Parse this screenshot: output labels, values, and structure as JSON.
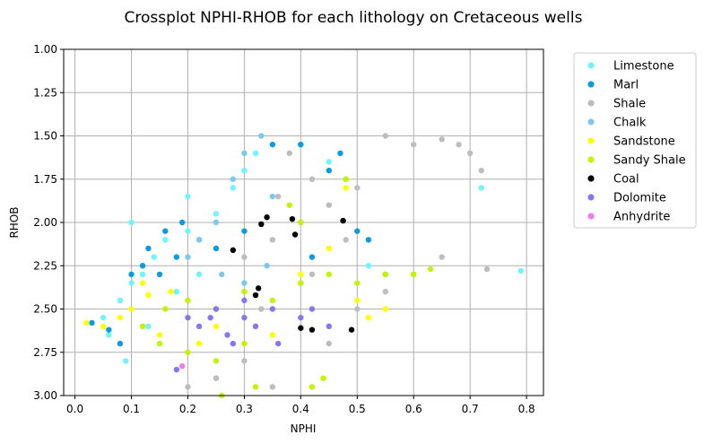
{
  "chart_data": {
    "type": "scatter",
    "title": "Crossplot NPHI-RHOB for each lithology on Cretaceous wells",
    "xlabel": "NPHI",
    "ylabel": "RHOB",
    "xlim": [
      -0.02,
      0.83
    ],
    "ylim": [
      3.0,
      1.0
    ],
    "y_inverted": true,
    "xticks": [
      "0.0",
      "0.1",
      "0.2",
      "0.3",
      "0.4",
      "0.5",
      "0.6",
      "0.7",
      "0.8"
    ],
    "yticks": [
      "1.00",
      "1.25",
      "1.50",
      "1.75",
      "2.00",
      "2.25",
      "2.50",
      "2.75",
      "3.00"
    ],
    "grid": true,
    "legend_position": "outside-right",
    "series": [
      {
        "name": "Limestone",
        "color": "#6ef5ff",
        "points": [
          [
            0.05,
            2.55
          ],
          [
            0.08,
            2.45
          ],
          [
            0.1,
            2.35
          ],
          [
            0.12,
            2.3
          ],
          [
            0.14,
            2.2
          ],
          [
            0.16,
            2.1
          ],
          [
            0.2,
            2.05
          ],
          [
            0.25,
            1.95
          ],
          [
            0.28,
            1.8
          ],
          [
            0.3,
            1.7
          ],
          [
            0.32,
            1.6
          ],
          [
            0.4,
            1.55
          ],
          [
            0.45,
            1.65
          ],
          [
            0.48,
            1.75
          ],
          [
            0.52,
            2.25
          ],
          [
            0.79,
            2.28
          ],
          [
            0.72,
            1.8
          ],
          [
            0.1,
            2.0
          ],
          [
            0.2,
            1.85
          ],
          [
            0.06,
            2.65
          ],
          [
            0.09,
            2.8
          ],
          [
            0.13,
            2.6
          ],
          [
            0.18,
            2.4
          ],
          [
            0.22,
            2.3
          ]
        ]
      },
      {
        "name": "Marl",
        "color": "#0b9be2",
        "points": [
          [
            0.03,
            2.58
          ],
          [
            0.06,
            2.62
          ],
          [
            0.1,
            2.3
          ],
          [
            0.13,
            2.15
          ],
          [
            0.16,
            2.05
          ],
          [
            0.19,
            2.0
          ],
          [
            0.22,
            2.1
          ],
          [
            0.25,
            2.15
          ],
          [
            0.35,
            1.55
          ],
          [
            0.4,
            1.55
          ],
          [
            0.45,
            1.7
          ],
          [
            0.5,
            2.05
          ],
          [
            0.52,
            2.1
          ],
          [
            0.12,
            2.25
          ],
          [
            0.15,
            2.3
          ],
          [
            0.18,
            2.2
          ],
          [
            0.08,
            2.7
          ],
          [
            0.3,
            2.05
          ],
          [
            0.42,
            2.2
          ],
          [
            0.47,
            1.6
          ],
          [
            0.55,
            2.3
          ]
        ]
      },
      {
        "name": "Shale",
        "color": "#bdbdbd",
        "points": [
          [
            0.3,
            2.2
          ],
          [
            0.35,
            2.1
          ],
          [
            0.4,
            2.0
          ],
          [
            0.45,
            1.9
          ],
          [
            0.5,
            1.8
          ],
          [
            0.55,
            1.5
          ],
          [
            0.6,
            1.55
          ],
          [
            0.65,
            1.52
          ],
          [
            0.68,
            1.55
          ],
          [
            0.7,
            1.6
          ],
          [
            0.72,
            1.7
          ],
          [
            0.73,
            2.27
          ],
          [
            0.65,
            2.2
          ],
          [
            0.6,
            2.3
          ],
          [
            0.55,
            2.4
          ],
          [
            0.38,
            1.6
          ],
          [
            0.42,
            1.75
          ],
          [
            0.33,
            2.5
          ],
          [
            0.3,
            2.8
          ],
          [
            0.25,
            2.9
          ],
          [
            0.2,
            2.95
          ],
          [
            0.35,
            2.95
          ],
          [
            0.45,
            2.7
          ],
          [
            0.5,
            2.5
          ],
          [
            0.42,
            2.3
          ],
          [
            0.48,
            2.1
          ],
          [
            0.36,
            1.85
          ]
        ]
      },
      {
        "name": "Chalk",
        "color": "#7ec8f0",
        "points": [
          [
            0.25,
            2.0
          ],
          [
            0.28,
            1.75
          ],
          [
            0.3,
            1.6
          ],
          [
            0.33,
            1.5
          ],
          [
            0.35,
            1.85
          ],
          [
            0.26,
            2.3
          ],
          [
            0.3,
            2.35
          ],
          [
            0.34,
            2.25
          ],
          [
            0.2,
            2.2
          ],
          [
            0.22,
            2.1
          ]
        ]
      },
      {
        "name": "Sandstone",
        "color": "#ffff00",
        "points": [
          [
            0.02,
            2.58
          ],
          [
            0.05,
            2.6
          ],
          [
            0.08,
            2.55
          ],
          [
            0.1,
            2.5
          ],
          [
            0.13,
            2.42
          ],
          [
            0.17,
            2.4
          ],
          [
            0.2,
            2.55
          ],
          [
            0.25,
            2.6
          ],
          [
            0.3,
            2.55
          ],
          [
            0.35,
            2.65
          ],
          [
            0.4,
            2.3
          ],
          [
            0.45,
            2.15
          ],
          [
            0.5,
            2.45
          ],
          [
            0.55,
            2.5
          ],
          [
            0.48,
            1.8
          ],
          [
            0.52,
            2.55
          ],
          [
            0.15,
            2.65
          ],
          [
            0.22,
            2.7
          ],
          [
            0.12,
            2.35
          ]
        ]
      },
      {
        "name": "Sandy Shale",
        "color": "#c0f500",
        "points": [
          [
            0.12,
            2.6
          ],
          [
            0.16,
            2.5
          ],
          [
            0.2,
            2.45
          ],
          [
            0.25,
            2.5
          ],
          [
            0.3,
            2.4
          ],
          [
            0.35,
            2.45
          ],
          [
            0.4,
            2.35
          ],
          [
            0.45,
            2.3
          ],
          [
            0.5,
            2.35
          ],
          [
            0.55,
            2.3
          ],
          [
            0.6,
            2.3
          ],
          [
            0.63,
            2.27
          ],
          [
            0.38,
            1.9
          ],
          [
            0.4,
            2.0
          ],
          [
            0.48,
            1.75
          ],
          [
            0.3,
            2.7
          ],
          [
            0.25,
            2.8
          ],
          [
            0.26,
            3.0
          ],
          [
            0.32,
            2.95
          ],
          [
            0.42,
            2.95
          ],
          [
            0.44,
            2.9
          ],
          [
            0.2,
            2.75
          ],
          [
            0.15,
            2.7
          ]
        ]
      },
      {
        "name": "Coal",
        "color": "#000000",
        "points": [
          [
            0.34,
            1.97
          ],
          [
            0.33,
            2.01
          ],
          [
            0.28,
            2.16
          ],
          [
            0.385,
            1.98
          ],
          [
            0.39,
            2.07
          ],
          [
            0.475,
            1.99
          ],
          [
            0.325,
            2.38
          ],
          [
            0.32,
            2.42
          ],
          [
            0.4,
            2.61
          ],
          [
            0.42,
            2.62
          ],
          [
            0.49,
            2.62
          ]
        ]
      },
      {
        "name": "Dolomite",
        "color": "#8577ee",
        "points": [
          [
            0.2,
            2.55
          ],
          [
            0.25,
            2.5
          ],
          [
            0.3,
            2.45
          ],
          [
            0.35,
            2.5
          ],
          [
            0.4,
            2.55
          ],
          [
            0.45,
            2.6
          ],
          [
            0.32,
            2.6
          ],
          [
            0.27,
            2.65
          ],
          [
            0.28,
            2.7
          ],
          [
            0.36,
            2.7
          ],
          [
            0.22,
            2.6
          ],
          [
            0.42,
            2.5
          ],
          [
            0.18,
            2.85
          ],
          [
            0.3,
            2.55
          ],
          [
            0.24,
            2.55
          ]
        ]
      },
      {
        "name": "Anhydrite",
        "color": "#f07cf5",
        "points": [
          [
            0.19,
            2.83
          ]
        ]
      }
    ]
  }
}
